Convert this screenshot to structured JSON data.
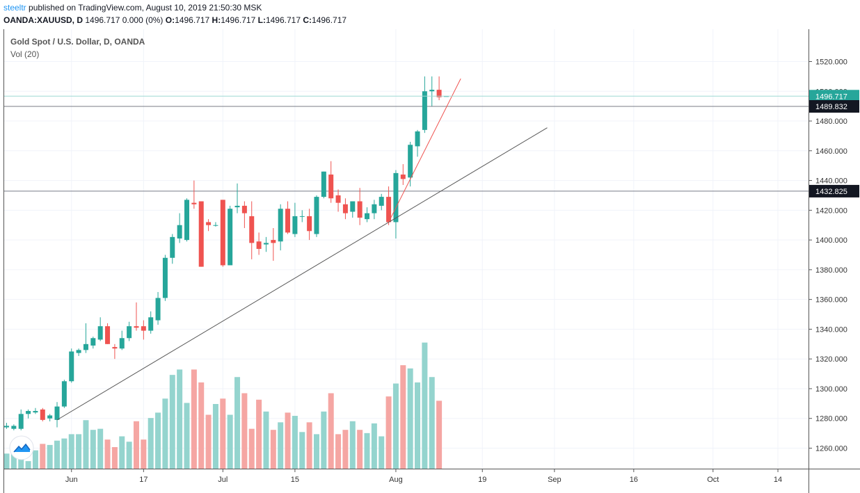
{
  "header": {
    "author": "steeltr",
    "published_text": "published on TradingView.com, August 10, 2019 21:50:30 MSK",
    "symbol": "OANDA:XAUUSD, D",
    "quote_text": "1496.717 0.000 (0%)",
    "o_label": "O:",
    "o_value": "1496.717",
    "h_label": "H:",
    "h_value": "1496.717",
    "l_label": "L:",
    "l_value": "1496.717",
    "c_label": "C:",
    "c_value": "1496.717"
  },
  "legend": {
    "title": "Gold Spot / U.S. Dollar, D, OANDA",
    "volume": "Vol (20)"
  },
  "colors": {
    "up": "#26a69a",
    "down": "#ef5350",
    "vol_up": "#94d4ce",
    "vol_down": "#f5a6a3",
    "grid": "#f0f3fa",
    "axis": "#555555",
    "price_badge": "#26a69a",
    "level_badge": "#131722",
    "trendline": "#555555",
    "steep_trendline": "#ef5350"
  },
  "chart_data": {
    "type": "candlestick",
    "y_axis_ticks": [
      "1520.000",
      "1500.000",
      "1480.000",
      "1460.000",
      "1440.000",
      "1420.000",
      "1400.000",
      "1380.000",
      "1360.000",
      "1340.000",
      "1320.000",
      "1300.000",
      "1280.000",
      "1260.000"
    ],
    "y_axis_values": [
      1520,
      1500,
      1480,
      1460,
      1440,
      1420,
      1400,
      1380,
      1360,
      1340,
      1320,
      1300,
      1280,
      1260
    ],
    "ylim": [
      1247,
      1531
    ],
    "x_axis_labels": [
      "Jun",
      "17",
      "Jul",
      "15",
      "Aug",
      "19",
      "Sep",
      "16",
      "Oct",
      "14"
    ],
    "x_axis_label_index": [
      9,
      19,
      30,
      40,
      54,
      66,
      76,
      87,
      98,
      107
    ],
    "last_price_label": "1496.717",
    "last_price": 1496.717,
    "horizontal_levels": [
      {
        "label": "1489.832",
        "value": 1489.832
      },
      {
        "label": "1432.825",
        "value": 1432.825
      }
    ],
    "trendlines": [
      {
        "name": "support",
        "from": {
          "index": 7,
          "price": 1279
        },
        "to": {
          "index": 75,
          "price": 1475.5
        }
      },
      {
        "name": "steep",
        "from": {
          "index": 53,
          "price": 1412
        },
        "to": {
          "index": 63,
          "price": 1508.5
        }
      }
    ],
    "candles": [
      {
        "i": 0,
        "o": 1274,
        "h": 1277,
        "l": 1273,
        "c": 1275,
        "v": 0.14
      },
      {
        "i": 1,
        "o": 1273,
        "h": 1276,
        "l": 1272,
        "c": 1275,
        "v": 0.18
      },
      {
        "i": 2,
        "o": 1273,
        "h": 1286,
        "l": 1272,
        "c": 1283,
        "v": 0.22
      },
      {
        "i": 3,
        "o": 1283,
        "h": 1286,
        "l": 1280,
        "c": 1285,
        "v": 0.07
      },
      {
        "i": 4,
        "o": 1284,
        "h": 1287,
        "l": 1283,
        "c": 1285,
        "v": 0.17
      },
      {
        "i": 5,
        "o": 1286,
        "h": 1287,
        "l": 1278,
        "c": 1279,
        "v": 0.23
      },
      {
        "i": 6,
        "o": 1280,
        "h": 1283,
        "l": 1278,
        "c": 1282,
        "v": 0.22
      },
      {
        "i": 7,
        "o": 1279,
        "h": 1291,
        "l": 1274,
        "c": 1288,
        "v": 0.26
      },
      {
        "i": 8,
        "o": 1288,
        "h": 1306,
        "l": 1287,
        "c": 1305,
        "v": 0.28
      },
      {
        "i": 9,
        "o": 1305,
        "h": 1327,
        "l": 1304,
        "c": 1325,
        "v": 0.32
      },
      {
        "i": 10,
        "o": 1324,
        "h": 1327,
        "l": 1322,
        "c": 1326,
        "v": 0.32
      },
      {
        "i": 11,
        "o": 1326,
        "h": 1344,
        "l": 1324,
        "c": 1330,
        "v": 0.45
      },
      {
        "i": 12,
        "o": 1329,
        "h": 1335,
        "l": 1327,
        "c": 1334,
        "v": 0.36
      },
      {
        "i": 13,
        "o": 1333,
        "h": 1348,
        "l": 1332,
        "c": 1342,
        "v": 0.37
      },
      {
        "i": 14,
        "o": 1342,
        "h": 1344,
        "l": 1330,
        "c": 1330,
        "v": 0.27
      },
      {
        "i": 15,
        "o": 1328,
        "h": 1330,
        "l": 1320,
        "c": 1327,
        "v": 0.2
      },
      {
        "i": 16,
        "o": 1327,
        "h": 1339,
        "l": 1326,
        "c": 1334,
        "v": 0.3
      },
      {
        "i": 17,
        "o": 1334,
        "h": 1345,
        "l": 1332,
        "c": 1342,
        "v": 0.25
      },
      {
        "i": 18,
        "o": 1342,
        "h": 1358,
        "l": 1339,
        "c": 1341,
        "v": 0.44
      },
      {
        "i": 19,
        "o": 1342,
        "h": 1346,
        "l": 1333,
        "c": 1339,
        "v": 0.27
      },
      {
        "i": 20,
        "o": 1339,
        "h": 1352,
        "l": 1337,
        "c": 1348,
        "v": 0.47
      },
      {
        "i": 21,
        "o": 1346,
        "h": 1365,
        "l": 1343,
        "c": 1361,
        "v": 0.52
      },
      {
        "i": 22,
        "o": 1361,
        "h": 1390,
        "l": 1359,
        "c": 1388,
        "v": 0.65
      },
      {
        "i": 23,
        "o": 1388,
        "h": 1404,
        "l": 1384,
        "c": 1402,
        "v": 0.87
      },
      {
        "i": 24,
        "o": 1401,
        "h": 1418,
        "l": 1398,
        "c": 1410,
        "v": 0.92
      },
      {
        "i": 25,
        "o": 1400,
        "h": 1428,
        "l": 1399,
        "c": 1427,
        "v": 0.61
      },
      {
        "i": 26,
        "o": 1425,
        "h": 1440,
        "l": 1421,
        "c": 1424,
        "v": 0.92
      },
      {
        "i": 27,
        "o": 1426,
        "h": 1426,
        "l": 1382,
        "c": 1382,
        "v": 0.8
      },
      {
        "i": 28,
        "o": 1412,
        "h": 1414,
        "l": 1406,
        "c": 1410,
        "v": 0.5
      },
      {
        "i": 29,
        "o": 1410,
        "h": 1412,
        "l": 1409,
        "c": 1410,
        "v": 0.6
      },
      {
        "i": 30,
        "o": 1427,
        "h": 1427,
        "l": 1382,
        "c": 1383,
        "v": 0.65
      },
      {
        "i": 31,
        "o": 1383,
        "h": 1423,
        "l": 1383,
        "c": 1421,
        "v": 0.5
      },
      {
        "i": 32,
        "o": 1422,
        "h": 1438,
        "l": 1418,
        "c": 1423,
        "v": 0.85
      },
      {
        "i": 33,
        "o": 1423,
        "h": 1426,
        "l": 1408,
        "c": 1418,
        "v": 0.7
      },
      {
        "i": 34,
        "o": 1416,
        "h": 1426,
        "l": 1387,
        "c": 1398,
        "v": 0.37
      },
      {
        "i": 35,
        "o": 1399,
        "h": 1405,
        "l": 1390,
        "c": 1394,
        "v": 0.64
      },
      {
        "i": 36,
        "o": 1397,
        "h": 1402,
        "l": 1392,
        "c": 1398,
        "v": 0.53
      },
      {
        "i": 37,
        "o": 1400,
        "h": 1408,
        "l": 1386,
        "c": 1398,
        "v": 0.36
      },
      {
        "i": 38,
        "o": 1399,
        "h": 1424,
        "l": 1393,
        "c": 1421,
        "v": 0.43
      },
      {
        "i": 39,
        "o": 1421,
        "h": 1426,
        "l": 1404,
        "c": 1405,
        "v": 0.52
      },
      {
        "i": 40,
        "o": 1404,
        "h": 1425,
        "l": 1402,
        "c": 1416,
        "v": 0.49
      },
      {
        "i": 41,
        "o": 1416,
        "h": 1420,
        "l": 1412,
        "c": 1416,
        "v": 0.34
      },
      {
        "i": 42,
        "o": 1416,
        "h": 1421,
        "l": 1400,
        "c": 1406,
        "v": 0.43
      },
      {
        "i": 43,
        "o": 1404,
        "h": 1430,
        "l": 1402,
        "c": 1429,
        "v": 0.32
      },
      {
        "i": 44,
        "o": 1429,
        "h": 1446,
        "l": 1428,
        "c": 1446,
        "v": 0.53
      },
      {
        "i": 45,
        "o": 1444,
        "h": 1453,
        "l": 1425,
        "c": 1428,
        "v": 0.7
      },
      {
        "i": 46,
        "o": 1430,
        "h": 1434,
        "l": 1419,
        "c": 1425,
        "v": 0.32
      },
      {
        "i": 47,
        "o": 1424,
        "h": 1428,
        "l": 1414,
        "c": 1418,
        "v": 0.36
      },
      {
        "i": 48,
        "o": 1419,
        "h": 1426,
        "l": 1415,
        "c": 1426,
        "v": 0.44
      },
      {
        "i": 49,
        "o": 1426,
        "h": 1435,
        "l": 1410,
        "c": 1415,
        "v": 0.36
      },
      {
        "i": 50,
        "o": 1414,
        "h": 1422,
        "l": 1412,
        "c": 1418,
        "v": 0.33
      },
      {
        "i": 51,
        "o": 1418,
        "h": 1427,
        "l": 1414,
        "c": 1424,
        "v": 0.42
      },
      {
        "i": 52,
        "o": 1423,
        "h": 1431,
        "l": 1420,
        "c": 1429,
        "v": 0.3
      },
      {
        "i": 53,
        "o": 1429,
        "h": 1436,
        "l": 1410,
        "c": 1412,
        "v": 0.67
      },
      {
        "i": 54,
        "o": 1412,
        "h": 1447,
        "l": 1401,
        "c": 1445,
        "v": 0.79
      },
      {
        "i": 55,
        "o": 1444,
        "h": 1451,
        "l": 1437,
        "c": 1441,
        "v": 0.96
      },
      {
        "i": 56,
        "o": 1442,
        "h": 1466,
        "l": 1436,
        "c": 1464,
        "v": 0.93
      },
      {
        "i": 57,
        "o": 1463,
        "h": 1474,
        "l": 1456,
        "c": 1473,
        "v": 0.8
      },
      {
        "i": 58,
        "o": 1474,
        "h": 1510,
        "l": 1472,
        "c": 1500,
        "v": 1.17
      },
      {
        "i": 59,
        "o": 1500,
        "h": 1510,
        "l": 1490,
        "c": 1501,
        "v": 0.85
      },
      {
        "i": 60,
        "o": 1501,
        "h": 1510,
        "l": 1494,
        "c": 1496,
        "v": 0.63
      },
      {
        "i": 61,
        "o": 1496.717,
        "h": 1496.717,
        "l": 1496.717,
        "c": 1496.717,
        "v": 0
      }
    ]
  }
}
